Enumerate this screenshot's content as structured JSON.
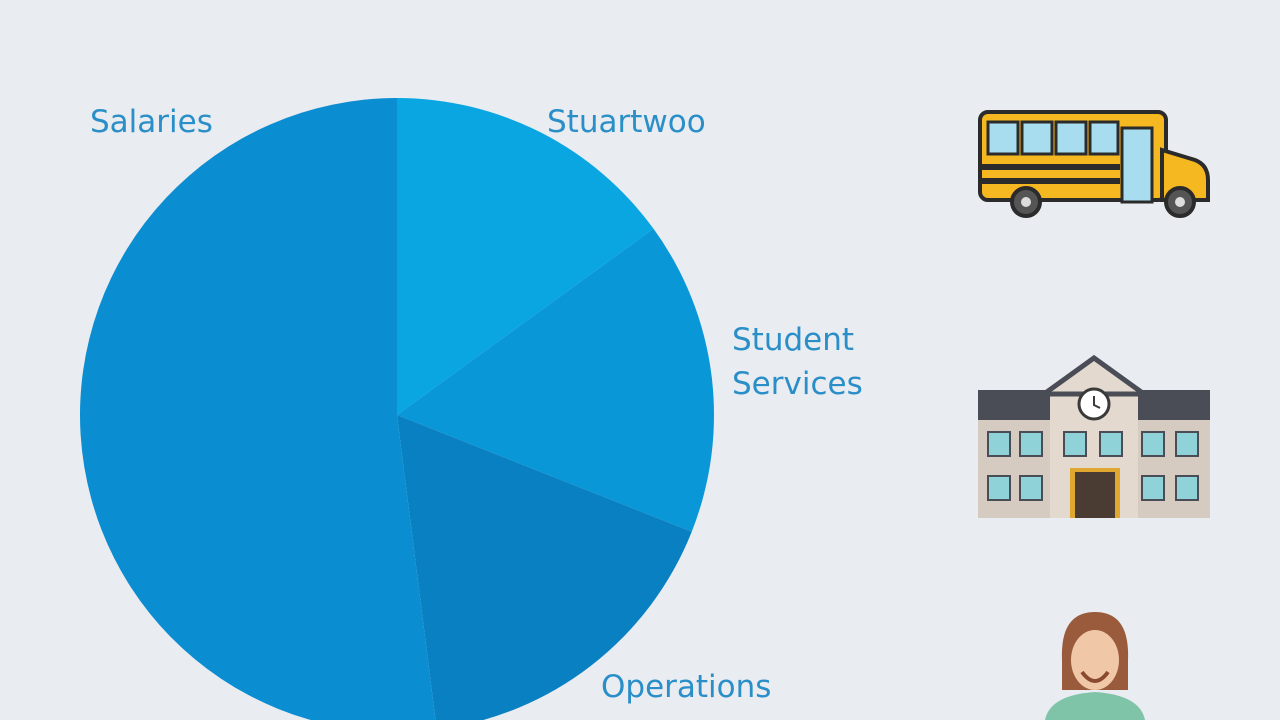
{
  "chart_data": {
    "type": "pie",
    "categories": [
      "Stuartwoo",
      "Student Services",
      "Operations",
      "Salaries"
    ],
    "values": [
      15,
      16,
      17,
      52
    ],
    "colors": [
      "#0aa6e1",
      "#0997d7",
      "#0880c2",
      "#0b8dd2"
    ]
  }
}
